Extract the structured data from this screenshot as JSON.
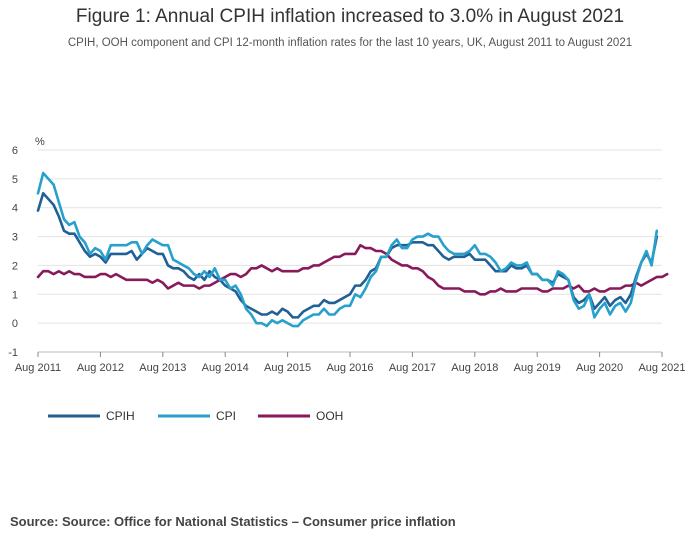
{
  "chart_data": {
    "type": "line",
    "title": "Figure 1: Annual CPIH inflation increased to 3.0% in August 2021",
    "subtitle": "CPIH, OOH component and CPI 12-month inflation rates for the last 10 years, UK, August 2011 to August 2021",
    "ylabel": "%",
    "ylim": [
      -1,
      6
    ],
    "yticks": [
      -1,
      0,
      1,
      2,
      3,
      4,
      5,
      6
    ],
    "xticks": [
      "Aug 2011",
      "Aug 2012",
      "Aug 2013",
      "Aug 2014",
      "Aug 2015",
      "Aug 2016",
      "Aug 2017",
      "Aug 2018",
      "Aug 2019",
      "Aug 2020",
      "Aug 2021"
    ],
    "grid": true,
    "legend_position": "bottom",
    "x_start": "Aug 2011",
    "x_frequency": "monthly",
    "series": [
      {
        "name": "CPIH",
        "color": "#206095",
        "values": [
          3.9,
          4.5,
          4.3,
          4.1,
          3.7,
          3.2,
          3.1,
          3.1,
          2.8,
          2.5,
          2.3,
          2.4,
          2.3,
          2.1,
          2.4,
          2.4,
          2.4,
          2.4,
          2.5,
          2.2,
          2.4,
          2.6,
          2.5,
          2.4,
          2.4,
          2.0,
          1.9,
          1.9,
          1.8,
          1.6,
          1.5,
          1.7,
          1.5,
          1.8,
          1.6,
          1.5,
          1.3,
          1.2,
          1.1,
          0.8,
          0.6,
          0.5,
          0.4,
          0.3,
          0.3,
          0.4,
          0.3,
          0.5,
          0.4,
          0.2,
          0.2,
          0.4,
          0.5,
          0.6,
          0.6,
          0.8,
          0.7,
          0.7,
          0.8,
          0.9,
          1.0,
          1.3,
          1.3,
          1.5,
          1.8,
          1.9,
          2.3,
          2.3,
          2.6,
          2.7,
          2.7,
          2.7,
          2.8,
          2.8,
          2.8,
          2.7,
          2.7,
          2.5,
          2.3,
          2.2,
          2.3,
          2.3,
          2.3,
          2.4,
          2.2,
          2.2,
          2.2,
          2.0,
          1.8,
          1.8,
          1.8,
          2.0,
          1.9,
          1.9,
          2.0,
          1.7,
          1.7,
          1.5,
          1.5,
          1.4,
          1.7,
          1.6,
          1.5,
          0.9,
          0.7,
          0.8,
          1.0,
          0.5,
          0.7,
          0.9,
          0.6,
          0.8,
          0.9,
          0.7,
          1.0,
          1.6,
          2.1,
          2.4,
          2.1,
          3.0
        ]
      },
      {
        "name": "CPI",
        "color": "#27a0cc",
        "values": [
          4.5,
          5.2,
          5.0,
          4.8,
          4.2,
          3.6,
          3.4,
          3.5,
          3.0,
          2.8,
          2.4,
          2.6,
          2.5,
          2.2,
          2.7,
          2.7,
          2.7,
          2.7,
          2.8,
          2.8,
          2.4,
          2.7,
          2.9,
          2.8,
          2.7,
          2.7,
          2.2,
          2.1,
          2.0,
          1.9,
          1.7,
          1.6,
          1.8,
          1.6,
          1.9,
          1.5,
          1.5,
          1.2,
          1.3,
          1.0,
          0.5,
          0.3,
          0.0,
          0.0,
          -0.1,
          0.1,
          0.0,
          0.1,
          0.0,
          -0.1,
          -0.1,
          0.1,
          0.2,
          0.3,
          0.3,
          0.5,
          0.3,
          0.3,
          0.5,
          0.6,
          0.6,
          1.0,
          0.9,
          1.2,
          1.6,
          1.8,
          2.3,
          2.3,
          2.7,
          2.9,
          2.6,
          2.6,
          2.9,
          3.0,
          3.0,
          3.1,
          3.0,
          3.0,
          2.7,
          2.5,
          2.4,
          2.4,
          2.4,
          2.5,
          2.7,
          2.4,
          2.4,
          2.3,
          2.1,
          1.8,
          1.9,
          2.1,
          2.0,
          2.0,
          2.1,
          1.7,
          1.7,
          1.5,
          1.5,
          1.3,
          1.8,
          1.7,
          1.5,
          0.8,
          0.5,
          0.6,
          1.0,
          0.2,
          0.5,
          0.7,
          0.3,
          0.6,
          0.7,
          0.4,
          0.7,
          1.5,
          2.1,
          2.5,
          2.0,
          3.2
        ]
      },
      {
        "name": "OOH",
        "color": "#871a5b",
        "values": [
          1.6,
          1.8,
          1.8,
          1.7,
          1.8,
          1.7,
          1.8,
          1.7,
          1.7,
          1.6,
          1.6,
          1.6,
          1.7,
          1.7,
          1.6,
          1.7,
          1.6,
          1.5,
          1.5,
          1.5,
          1.5,
          1.5,
          1.4,
          1.5,
          1.4,
          1.2,
          1.3,
          1.4,
          1.3,
          1.3,
          1.3,
          1.2,
          1.3,
          1.3,
          1.4,
          1.5,
          1.6,
          1.7,
          1.7,
          1.6,
          1.7,
          1.9,
          1.9,
          2.0,
          1.9,
          1.8,
          1.9,
          1.8,
          1.8,
          1.8,
          1.8,
          1.9,
          1.9,
          2.0,
          2.0,
          2.1,
          2.2,
          2.3,
          2.3,
          2.4,
          2.4,
          2.4,
          2.7,
          2.6,
          2.6,
          2.5,
          2.5,
          2.4,
          2.2,
          2.1,
          2.0,
          2.0,
          1.9,
          1.9,
          1.8,
          1.6,
          1.5,
          1.3,
          1.2,
          1.2,
          1.2,
          1.2,
          1.1,
          1.1,
          1.1,
          1.0,
          1.0,
          1.1,
          1.1,
          1.2,
          1.1,
          1.1,
          1.1,
          1.2,
          1.2,
          1.2,
          1.2,
          1.1,
          1.1,
          1.2,
          1.2,
          1.2,
          1.3,
          1.2,
          1.3,
          1.1,
          1.1,
          1.2,
          1.1,
          1.1,
          1.2,
          1.2,
          1.2,
          1.3,
          1.3,
          1.4,
          1.3,
          1.4,
          1.5,
          1.6,
          1.6,
          1.7
        ]
      }
    ]
  },
  "source": "Source: Source: Office for National Statistics – Consumer price inflation"
}
